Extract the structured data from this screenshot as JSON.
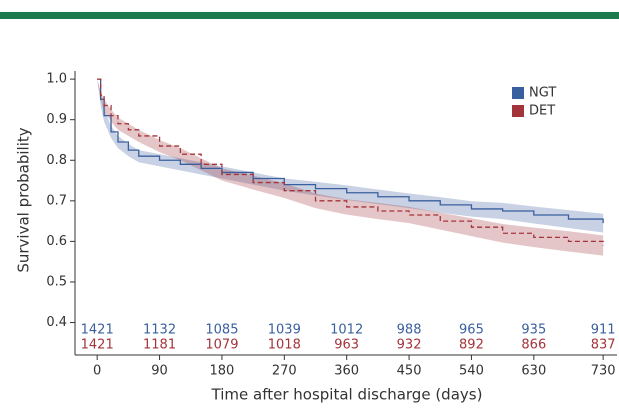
{
  "chart_data": {
    "type": "survival",
    "xlabel": "Time after hospital discharge (days)",
    "ylabel": "Survival probability",
    "x": [
      0,
      5,
      10,
      20,
      30,
      45,
      60,
      90,
      120,
      150,
      180,
      225,
      270,
      315,
      360,
      405,
      450,
      495,
      540,
      585,
      630,
      680,
      730
    ],
    "series": [
      {
        "name": "NGT",
        "color": "#3a5f9e",
        "dashed": false,
        "values": [
          1.0,
          0.95,
          0.91,
          0.87,
          0.845,
          0.825,
          0.81,
          0.8,
          0.79,
          0.78,
          0.77,
          0.755,
          0.74,
          0.73,
          0.72,
          0.71,
          0.7,
          0.69,
          0.68,
          0.675,
          0.665,
          0.655,
          0.645
        ],
        "lower": [
          1.0,
          0.935,
          0.895,
          0.855,
          0.83,
          0.81,
          0.795,
          0.785,
          0.775,
          0.765,
          0.755,
          0.74,
          0.725,
          0.713,
          0.702,
          0.692,
          0.682,
          0.671,
          0.661,
          0.655,
          0.644,
          0.633,
          0.622
        ],
        "upper": [
          1.0,
          0.965,
          0.925,
          0.885,
          0.86,
          0.84,
          0.825,
          0.815,
          0.805,
          0.795,
          0.785,
          0.77,
          0.755,
          0.747,
          0.738,
          0.728,
          0.718,
          0.709,
          0.699,
          0.695,
          0.686,
          0.677,
          0.668
        ],
        "at_risk": [
          1421,
          1132,
          1085,
          1039,
          1012,
          988,
          965,
          935,
          911
        ]
      },
      {
        "name": "DET",
        "color": "#a3343a",
        "dashed": true,
        "values": [
          1.0,
          0.96,
          0.935,
          0.91,
          0.89,
          0.875,
          0.86,
          0.835,
          0.815,
          0.79,
          0.765,
          0.745,
          0.725,
          0.7,
          0.685,
          0.675,
          0.665,
          0.65,
          0.635,
          0.62,
          0.61,
          0.6,
          0.59
        ],
        "lower": [
          1.0,
          0.95,
          0.92,
          0.895,
          0.875,
          0.86,
          0.845,
          0.82,
          0.8,
          0.775,
          0.75,
          0.728,
          0.707,
          0.682,
          0.666,
          0.655,
          0.645,
          0.629,
          0.613,
          0.597,
          0.586,
          0.575,
          0.565
        ],
        "upper": [
          1.0,
          0.97,
          0.95,
          0.925,
          0.905,
          0.89,
          0.875,
          0.85,
          0.83,
          0.805,
          0.78,
          0.762,
          0.743,
          0.718,
          0.704,
          0.695,
          0.685,
          0.671,
          0.657,
          0.643,
          0.634,
          0.625,
          0.615
        ],
        "at_risk": [
          1421,
          1181,
          1079,
          1018,
          963,
          932,
          892,
          866,
          837
        ]
      }
    ],
    "xlim": [
      -32,
      750
    ],
    "xticks": [
      0,
      90,
      180,
      270,
      360,
      450,
      540,
      630,
      730
    ],
    "ylim": [
      0.32,
      1.02
    ],
    "yticks": [
      {
        "value": 0.4,
        "label": "0.4"
      },
      {
        "value": 0.5,
        "label": "0.5"
      },
      {
        "value": 0.6,
        "label": "0.6"
      },
      {
        "value": 0.7,
        "label": "0.7"
      },
      {
        "value": 0.8,
        "label": "0.8"
      },
      {
        "value": 0.9,
        "label": "0.9"
      },
      {
        "value": 1.0,
        "label": "1.0"
      }
    ],
    "legend": "top-right"
  }
}
